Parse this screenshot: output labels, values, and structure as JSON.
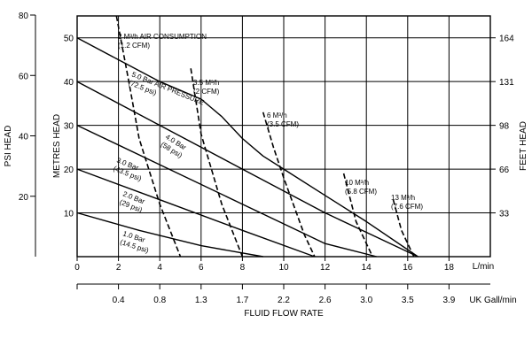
{
  "chart_data": {
    "type": "line",
    "title": "",
    "xlabel": "FLUID FLOW RATE",
    "x_unit_label": "L/min",
    "x2_unit_label": "UK Gall/min",
    "ylabel": "METRES HEAD",
    "ylabel_left": "PSI HEAD",
    "ylabel_right": "FEET HEAD",
    "xlim": [
      0,
      20
    ],
    "ylim": [
      0,
      55
    ],
    "grid": true,
    "x_ticks": [
      "0",
      "2",
      "4",
      "6",
      "8",
      "10",
      "12",
      "14",
      "16",
      "18"
    ],
    "x_tick_values": [
      0,
      2,
      4,
      6,
      8,
      10,
      12,
      14,
      16,
      18
    ],
    "x2_ticks": [
      "0.4",
      "0.8",
      "1.3",
      "1.7",
      "2.2",
      "2.6",
      "3.0",
      "3.5",
      "3.9"
    ],
    "x2_tick_positions_lpm": [
      2,
      4,
      6,
      8,
      10,
      12,
      14,
      16,
      18
    ],
    "y_ticks": [
      "10",
      "20",
      "30",
      "40",
      "50"
    ],
    "y_tick_values": [
      10,
      20,
      30,
      40,
      50
    ],
    "psi_ticks": [
      "20",
      "40",
      "60",
      "80"
    ],
    "psi_tick_metres": [
      13.8,
      27.6,
      41.4,
      55.2
    ],
    "feet_ticks": [
      "33",
      "66",
      "98",
      "131",
      "164"
    ],
    "feet_tick_metres": [
      10,
      20,
      30,
      40,
      50
    ],
    "series": [
      {
        "name": "5.0 Bar AIR PRESSURE",
        "label_line1": "5.0 Bar AIR PRESSURE",
        "label_line2": "(72.5 psi)",
        "kind": "pressure",
        "x": [
          0,
          2,
          4,
          6,
          7,
          8,
          9,
          10,
          12,
          14,
          16.5
        ],
        "y": [
          50,
          45,
          40,
          36,
          32,
          27,
          23,
          20,
          14,
          8,
          0
        ]
      },
      {
        "name": "4.0 Bar",
        "label_line1": "4.0 Bar",
        "label_line2": "(58 psi)",
        "kind": "pressure",
        "x": [
          0,
          4,
          8,
          12,
          16.5
        ],
        "y": [
          40,
          30,
          20,
          10,
          0
        ]
      },
      {
        "name": "3.0 Bar",
        "label_line1": "3.0 Bar",
        "label_line2": "(43.5 psi)",
        "kind": "pressure",
        "x": [
          0,
          4,
          8,
          12,
          14.5
        ],
        "y": [
          30,
          21,
          12,
          3,
          0
        ]
      },
      {
        "name": "2.0 Bar",
        "label_line1": "2.0 Bar",
        "label_line2": "(29 psi)",
        "kind": "pressure",
        "x": [
          0,
          4,
          8,
          11.5
        ],
        "y": [
          20,
          13,
          6,
          0
        ]
      },
      {
        "name": "1.0 Bar",
        "label_line1": "1.0 Bar",
        "label_line2": "(14.5 psi)",
        "kind": "pressure",
        "x": [
          0,
          3,
          6,
          9
        ],
        "y": [
          10,
          6,
          2.5,
          0
        ]
      },
      {
        "name": "2 M³/h AIR CONSUMPTION",
        "label_line1": "2 M³/h AIR CONSUMPTION",
        "label_line2": "(1.2 CFM)",
        "kind": "air",
        "x": [
          1.9,
          2.5,
          3,
          4,
          5
        ],
        "y": [
          55,
          40,
          27,
          12,
          0
        ]
      },
      {
        "name": "3.5 M³/h",
        "label_line1": "3.5 M³/h",
        "label_line2": "(2 CFM)",
        "kind": "air",
        "x": [
          5.5,
          6,
          7,
          8
        ],
        "y": [
          43,
          28,
          12,
          0
        ]
      },
      {
        "name": "6 M³/h",
        "label_line1": "6 M³/h",
        "label_line2": "(3.5 CFM)",
        "kind": "air",
        "x": [
          9,
          9.5,
          10,
          11,
          11.5
        ],
        "y": [
          33,
          25,
          18,
          5,
          0
        ]
      },
      {
        "name": "10 M³/h",
        "label_line1": "10 M³/h",
        "label_line2": "(5.8 CFM)",
        "kind": "air",
        "x": [
          12.9,
          13.5,
          14.3
        ],
        "y": [
          19,
          8,
          0
        ]
      },
      {
        "name": "13 M³/h",
        "label_line1": "13 M³/h",
        "label_line2": "(7.6 CFM)",
        "kind": "air",
        "x": [
          15.3,
          15.7,
          16.3
        ],
        "y": [
          13,
          6,
          0
        ]
      }
    ]
  }
}
